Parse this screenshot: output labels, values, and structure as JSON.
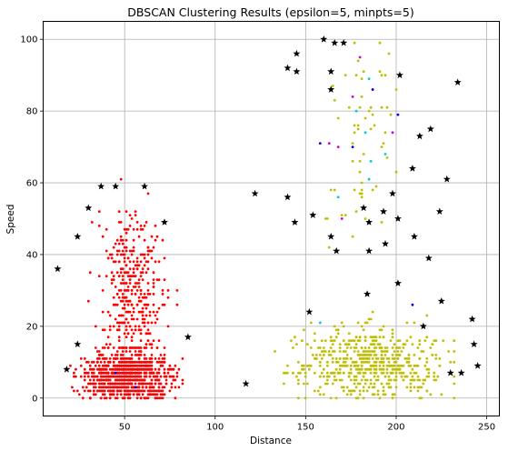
{
  "chart_data": {
    "type": "scatter",
    "title": "DBSCAN Clustering Results (epsilon=5, minpts=5)",
    "xlabel": "Distance",
    "ylabel": "Speed",
    "xlim": [
      5,
      257
    ],
    "ylim": [
      -5,
      105
    ],
    "xticks": [
      50,
      100,
      150,
      200,
      250
    ],
    "yticks": [
      0,
      20,
      40,
      60,
      80,
      100
    ],
    "grid": true,
    "clusters": [
      {
        "color": "#ff0000",
        "marker": "dot",
        "center": [
          52,
          6
        ],
        "spread": [
          12,
          3.2
        ],
        "count": 900,
        "note_range_x": [
          18,
          82
        ],
        "note_range_y": [
          0,
          14
        ]
      },
      {
        "color": "#ff0000",
        "marker": "dot",
        "center": [
          54,
          30
        ],
        "spread": [
          9,
          11
        ],
        "count": 380,
        "note_range_x": [
          23,
          83
        ],
        "note_range_y": [
          14,
          65
        ]
      },
      {
        "color": "#bfbf00",
        "marker": "dot",
        "center": [
          185,
          10
        ],
        "spread": [
          20,
          5
        ],
        "count": 600,
        "note_range_x": [
          133,
          232
        ],
        "note_range_y": [
          0,
          26
        ]
      },
      {
        "color": "#bfbf00",
        "marker": "dot",
        "center": [
          185,
          80
        ],
        "spread": [
          10,
          12
        ],
        "count": 45,
        "note_range_x": [
          150,
          200
        ],
        "note_range_y": [
          45,
          99
        ]
      },
      {
        "color": "#bfbf00",
        "marker": "dot",
        "center": [
          172,
          50
        ],
        "spread": [
          8,
          8
        ],
        "count": 15,
        "note_range_x": [
          158,
          202
        ],
        "note_range_y": [
          33,
          58
        ]
      }
    ],
    "small_clusters": [
      {
        "color": "#cc00cc",
        "points": [
          [
            180,
            95
          ],
          [
            176,
            84
          ],
          [
            168,
            70
          ],
          [
            163,
            71
          ],
          [
            198,
            74
          ],
          [
            187,
            86
          ],
          [
            170,
            50
          ]
        ]
      },
      {
        "color": "#0000ee",
        "points": [
          [
            158,
            71
          ],
          [
            176,
            70
          ],
          [
            187,
            86
          ],
          [
            201,
            79
          ],
          [
            209,
            26
          ],
          [
            45,
            7
          ],
          [
            56,
            3
          ]
        ]
      },
      {
        "color": "#00cccc",
        "points": [
          [
            185,
            89
          ],
          [
            183,
            74
          ],
          [
            186,
            66
          ],
          [
            194,
            68
          ],
          [
            185,
            61
          ],
          [
            168,
            56
          ],
          [
            158,
            21
          ],
          [
            178,
            80
          ]
        ]
      }
    ],
    "noise": {
      "color": "#000000",
      "marker": "star",
      "points": [
        [
          160,
          100
        ],
        [
          166,
          99
        ],
        [
          171,
          99
        ],
        [
          145,
          96
        ],
        [
          140,
          92
        ],
        [
          145,
          91
        ],
        [
          164,
          91
        ],
        [
          202,
          90
        ],
        [
          234,
          88
        ],
        [
          164,
          86
        ],
        [
          219,
          75
        ],
        [
          213,
          73
        ],
        [
          209,
          64
        ],
        [
          228,
          61
        ],
        [
          37,
          59
        ],
        [
          45,
          59
        ],
        [
          61,
          59
        ],
        [
          122,
          57
        ],
        [
          140,
          56
        ],
        [
          198,
          57
        ],
        [
          30,
          53
        ],
        [
          182,
          53
        ],
        [
          224,
          52
        ],
        [
          193,
          52
        ],
        [
          154,
          51
        ],
        [
          144,
          49
        ],
        [
          72,
          49
        ],
        [
          185,
          49
        ],
        [
          201,
          50
        ],
        [
          13,
          36
        ],
        [
          24,
          45
        ],
        [
          164,
          45
        ],
        [
          210,
          45
        ],
        [
          167,
          41
        ],
        [
          185,
          41
        ],
        [
          194,
          43
        ],
        [
          218,
          39
        ],
        [
          201,
          32
        ],
        [
          184,
          29
        ],
        [
          225,
          27
        ],
        [
          152,
          24
        ],
        [
          242,
          22
        ],
        [
          215,
          20
        ],
        [
          24,
          15
        ],
        [
          85,
          17
        ],
        [
          243,
          15
        ],
        [
          18,
          8
        ],
        [
          245,
          9
        ],
        [
          230,
          7
        ],
        [
          236,
          7
        ],
        [
          117,
          4
        ]
      ]
    }
  }
}
